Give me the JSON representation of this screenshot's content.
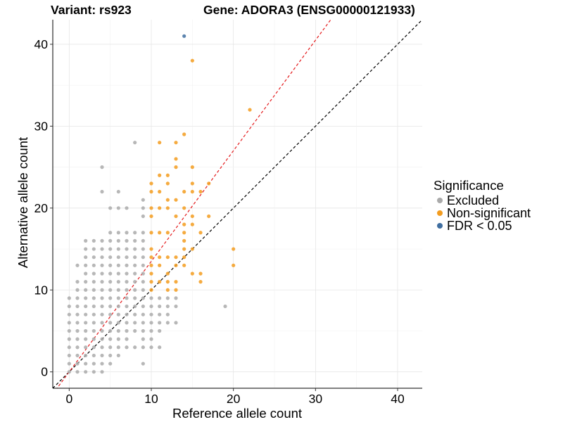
{
  "titles": {
    "variant": "Variant: rs923",
    "gene": "Gene: ADORA3 (ENSG00000121933)"
  },
  "legend": {
    "title": "Significance",
    "items": [
      {
        "label": "Excluded",
        "color": "#aaaaaa"
      },
      {
        "label": "Non-significant",
        "color": "#f39c1f"
      },
      {
        "label": "FDR < 0.05",
        "color": "#3f6ea0"
      }
    ]
  },
  "chart_data": {
    "type": "scatter",
    "title": "",
    "xlabel": "Reference allele count",
    "ylabel": "Alternative allele count",
    "xlim": [
      -2,
      43
    ],
    "ylim": [
      -2,
      43
    ],
    "xticks": [
      0,
      10,
      20,
      30,
      40
    ],
    "yticks": [
      0,
      10,
      20,
      30,
      40
    ],
    "grid": true,
    "reference_lines": [
      {
        "style": "dashed",
        "color": "#000000",
        "slope": 1,
        "intercept": 0
      },
      {
        "style": "dashed",
        "color": "#e41a1c",
        "slope": 1.35,
        "intercept": 0
      }
    ],
    "series": [
      {
        "name": "Excluded",
        "color": "#aaaaaa",
        "points": [
          [
            0,
            0
          ],
          [
            0,
            1
          ],
          [
            0,
            2
          ],
          [
            0,
            3
          ],
          [
            0,
            4
          ],
          [
            0,
            5
          ],
          [
            0,
            6
          ],
          [
            0,
            7
          ],
          [
            0,
            8
          ],
          [
            0,
            9
          ],
          [
            1,
            0
          ],
          [
            1,
            1
          ],
          [
            1,
            2
          ],
          [
            1,
            3
          ],
          [
            1,
            4
          ],
          [
            1,
            5
          ],
          [
            1,
            6
          ],
          [
            1,
            7
          ],
          [
            1,
            8
          ],
          [
            1,
            9
          ],
          [
            1,
            10
          ],
          [
            1,
            11
          ],
          [
            1,
            13
          ],
          [
            2,
            0
          ],
          [
            2,
            1
          ],
          [
            2,
            2
          ],
          [
            2,
            3
          ],
          [
            2,
            4
          ],
          [
            2,
            5
          ],
          [
            2,
            6
          ],
          [
            2,
            7
          ],
          [
            2,
            8
          ],
          [
            2,
            9
          ],
          [
            2,
            10
          ],
          [
            2,
            11
          ],
          [
            2,
            12
          ],
          [
            2,
            13
          ],
          [
            2,
            14
          ],
          [
            2,
            15
          ],
          [
            2,
            16
          ],
          [
            3,
            0
          ],
          [
            3,
            1
          ],
          [
            3,
            2
          ],
          [
            3,
            3
          ],
          [
            3,
            4
          ],
          [
            3,
            5
          ],
          [
            3,
            6
          ],
          [
            3,
            7
          ],
          [
            3,
            8
          ],
          [
            3,
            9
          ],
          [
            3,
            10
          ],
          [
            3,
            11
          ],
          [
            3,
            12
          ],
          [
            3,
            13
          ],
          [
            3,
            14
          ],
          [
            3,
            15
          ],
          [
            3,
            16
          ],
          [
            4,
            0
          ],
          [
            4,
            1
          ],
          [
            4,
            2
          ],
          [
            4,
            3
          ],
          [
            4,
            4
          ],
          [
            4,
            5
          ],
          [
            4,
            6
          ],
          [
            4,
            7
          ],
          [
            4,
            8
          ],
          [
            4,
            9
          ],
          [
            4,
            10
          ],
          [
            4,
            11
          ],
          [
            4,
            12
          ],
          [
            4,
            13
          ],
          [
            4,
            14
          ],
          [
            4,
            15
          ],
          [
            4,
            16
          ],
          [
            4,
            22
          ],
          [
            4,
            25
          ],
          [
            5,
            1
          ],
          [
            5,
            2
          ],
          [
            5,
            3
          ],
          [
            5,
            4
          ],
          [
            5,
            5
          ],
          [
            5,
            6
          ],
          [
            5,
            7
          ],
          [
            5,
            8
          ],
          [
            5,
            9
          ],
          [
            5,
            10
          ],
          [
            5,
            11
          ],
          [
            5,
            12
          ],
          [
            5,
            13
          ],
          [
            5,
            14
          ],
          [
            5,
            15
          ],
          [
            5,
            16
          ],
          [
            5,
            17
          ],
          [
            5,
            20
          ],
          [
            6,
            2
          ],
          [
            6,
            3
          ],
          [
            6,
            4
          ],
          [
            6,
            5
          ],
          [
            6,
            6
          ],
          [
            6,
            7
          ],
          [
            6,
            8
          ],
          [
            6,
            9
          ],
          [
            6,
            10
          ],
          [
            6,
            11
          ],
          [
            6,
            12
          ],
          [
            6,
            13
          ],
          [
            6,
            14
          ],
          [
            6,
            15
          ],
          [
            6,
            16
          ],
          [
            6,
            17
          ],
          [
            6,
            20
          ],
          [
            6,
            22
          ],
          [
            7,
            3
          ],
          [
            7,
            4
          ],
          [
            7,
            5
          ],
          [
            7,
            6
          ],
          [
            7,
            7
          ],
          [
            7,
            8
          ],
          [
            7,
            9
          ],
          [
            7,
            10
          ],
          [
            7,
            11
          ],
          [
            7,
            12
          ],
          [
            7,
            13
          ],
          [
            7,
            14
          ],
          [
            7,
            15
          ],
          [
            7,
            16
          ],
          [
            7,
            17
          ],
          [
            7,
            20
          ],
          [
            8,
            3
          ],
          [
            8,
            5
          ],
          [
            8,
            6
          ],
          [
            8,
            7
          ],
          [
            8,
            8
          ],
          [
            8,
            9
          ],
          [
            8,
            10
          ],
          [
            8,
            11
          ],
          [
            8,
            12
          ],
          [
            8,
            13
          ],
          [
            8,
            14
          ],
          [
            8,
            15
          ],
          [
            8,
            16
          ],
          [
            8,
            17
          ],
          [
            8,
            28
          ],
          [
            9,
            1
          ],
          [
            9,
            3
          ],
          [
            9,
            4
          ],
          [
            9,
            5
          ],
          [
            9,
            6
          ],
          [
            9,
            7
          ],
          [
            9,
            8
          ],
          [
            9,
            9
          ],
          [
            9,
            10
          ],
          [
            9,
            11
          ],
          [
            9,
            12
          ],
          [
            9,
            13
          ],
          [
            9,
            14
          ],
          [
            9,
            15
          ],
          [
            9,
            16
          ],
          [
            9,
            17
          ],
          [
            9,
            19
          ],
          [
            9,
            20
          ],
          [
            9,
            21
          ],
          [
            10,
            3
          ],
          [
            10,
            4
          ],
          [
            10,
            5
          ],
          [
            10,
            6
          ],
          [
            10,
            7
          ],
          [
            10,
            8
          ],
          [
            10,
            9
          ],
          [
            11,
            3
          ],
          [
            11,
            5
          ],
          [
            11,
            6
          ],
          [
            11,
            7
          ],
          [
            11,
            8
          ],
          [
            11,
            9
          ],
          [
            12,
            6
          ],
          [
            12,
            7
          ],
          [
            12,
            8
          ],
          [
            12,
            9
          ],
          [
            13,
            6
          ],
          [
            13,
            8
          ],
          [
            13,
            9
          ],
          [
            19,
            8
          ]
        ]
      },
      {
        "name": "Non-significant",
        "color": "#f39c1f",
        "points": [
          [
            10,
            10
          ],
          [
            10,
            11
          ],
          [
            10,
            12
          ],
          [
            10,
            13
          ],
          [
            10,
            14
          ],
          [
            10,
            15
          ],
          [
            10,
            17
          ],
          [
            10,
            19
          ],
          [
            10,
            20
          ],
          [
            10,
            22
          ],
          [
            10,
            23
          ],
          [
            11,
            11
          ],
          [
            11,
            13
          ],
          [
            11,
            14
          ],
          [
            11,
            17
          ],
          [
            11,
            20
          ],
          [
            11,
            22
          ],
          [
            11,
            24
          ],
          [
            11,
            28
          ],
          [
            12,
            10
          ],
          [
            12,
            11
          ],
          [
            12,
            12
          ],
          [
            12,
            14
          ],
          [
            12,
            17
          ],
          [
            12,
            20
          ],
          [
            12,
            21
          ],
          [
            12,
            23
          ],
          [
            12,
            24
          ],
          [
            13,
            10
          ],
          [
            13,
            11
          ],
          [
            13,
            13
          ],
          [
            13,
            14
          ],
          [
            13,
            19
          ],
          [
            13,
            21
          ],
          [
            13,
            25
          ],
          [
            13,
            26
          ],
          [
            13,
            28
          ],
          [
            14,
            13
          ],
          [
            14,
            14
          ],
          [
            14,
            15
          ],
          [
            14,
            16
          ],
          [
            14,
            17
          ],
          [
            14,
            18
          ],
          [
            14,
            20
          ],
          [
            14,
            22
          ],
          [
            14,
            29
          ],
          [
            15,
            12
          ],
          [
            15,
            15
          ],
          [
            15,
            18
          ],
          [
            15,
            19
          ],
          [
            15,
            22
          ],
          [
            15,
            23
          ],
          [
            15,
            25
          ],
          [
            15,
            38
          ],
          [
            16,
            11
          ],
          [
            16,
            12
          ],
          [
            16,
            17
          ],
          [
            16,
            22
          ],
          [
            17,
            19
          ],
          [
            17,
            23
          ],
          [
            20,
            13
          ],
          [
            20,
            15
          ],
          [
            22,
            32
          ]
        ]
      },
      {
        "name": "FDR < 0.05",
        "color": "#3f6ea0",
        "points": [
          [
            14,
            41
          ]
        ]
      }
    ]
  }
}
